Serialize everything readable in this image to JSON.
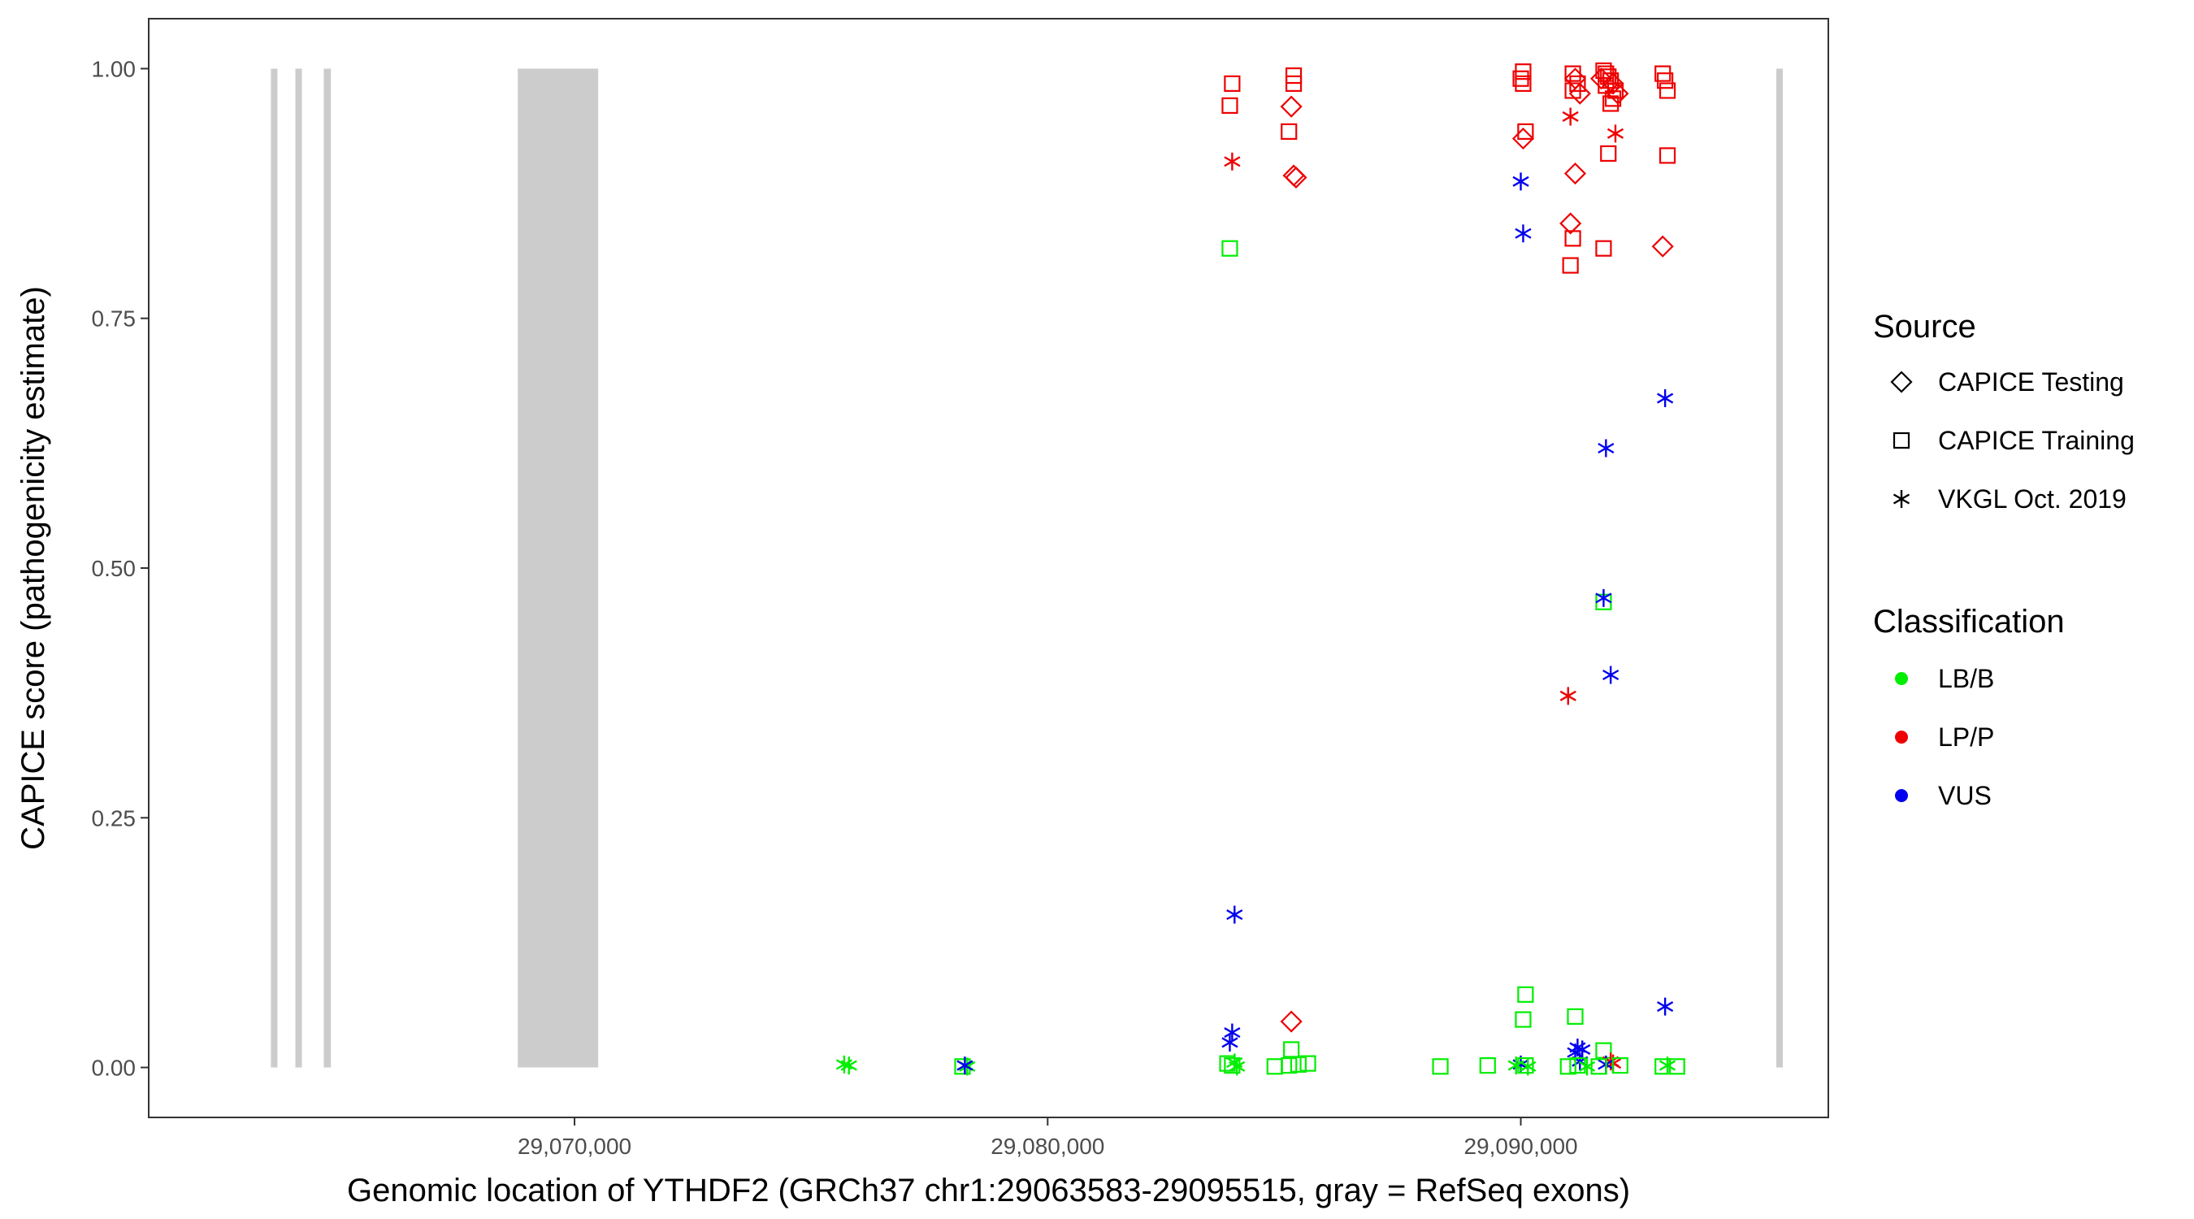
{
  "chart_data": {
    "type": "scatter",
    "xlabel": "Genomic location of YTHDF2 (GRCh37 chr1:29063583-29095515, gray = RefSeq exons)",
    "ylabel": "CAPICE score (pathogenicity estimate)",
    "xlim": [
      29061000,
      29096500
    ],
    "ylim": [
      -0.05,
      1.05
    ],
    "x_ticks": [
      29070000,
      29080000,
      29090000
    ],
    "x_tick_labels": [
      "29,070,000",
      "29,080,000",
      "29,090,000"
    ],
    "y_ticks": [
      0,
      0.25,
      0.5,
      0.75,
      1
    ],
    "y_tick_labels": [
      "0.00",
      "0.25",
      "0.50",
      "0.75",
      "1.00"
    ],
    "grid": false,
    "legend_position": "right",
    "exon_color": "#cccccc",
    "exons": [
      [
        29063583,
        29063700
      ],
      [
        29064100,
        29064220
      ],
      [
        29064700,
        29064850
      ],
      [
        29068800,
        29070500
      ],
      [
        29095400,
        29095515
      ]
    ],
    "source_legend": {
      "title": "Source",
      "items": [
        {
          "label": "CAPICE Testing",
          "shape": "diamond"
        },
        {
          "label": "CAPICE Training",
          "shape": "square"
        },
        {
          "label": "VKGL Oct. 2019",
          "shape": "asterisk"
        }
      ]
    },
    "class_legend": {
      "title": "Classification",
      "items": [
        {
          "label": "LB/B",
          "color": "#00ee00"
        },
        {
          "label": "LP/P",
          "color": "#ee0000"
        },
        {
          "label": "VUS",
          "color": "#0000ee"
        }
      ]
    },
    "points": [
      {
        "x": 29075700,
        "y": 0.003,
        "shape": "asterisk",
        "cls": "LB/B"
      },
      {
        "x": 29075800,
        "y": 0.002,
        "shape": "asterisk",
        "cls": "LB/B"
      },
      {
        "x": 29078200,
        "y": 0.001,
        "shape": "square",
        "cls": "LB/B"
      },
      {
        "x": 29078300,
        "y": 0.001,
        "shape": "asterisk",
        "cls": "LB/B"
      },
      {
        "x": 29078250,
        "y": 0.002,
        "shape": "asterisk",
        "cls": "VUS"
      },
      {
        "x": 29083900,
        "y": 0.985,
        "shape": "square",
        "cls": "LP/P"
      },
      {
        "x": 29083850,
        "y": 0.963,
        "shape": "square",
        "cls": "LP/P"
      },
      {
        "x": 29083900,
        "y": 0.907,
        "shape": "asterisk",
        "cls": "LP/P"
      },
      {
        "x": 29083850,
        "y": 0.82,
        "shape": "square",
        "cls": "LB/B"
      },
      {
        "x": 29083950,
        "y": 0.153,
        "shape": "asterisk",
        "cls": "VUS"
      },
      {
        "x": 29083900,
        "y": 0.035,
        "shape": "asterisk",
        "cls": "VUS"
      },
      {
        "x": 29083850,
        "y": 0.025,
        "shape": "asterisk",
        "cls": "VUS"
      },
      {
        "x": 29083800,
        "y": 0.004,
        "shape": "square",
        "cls": "LB/B"
      },
      {
        "x": 29083900,
        "y": 0.002,
        "shape": "square",
        "cls": "LB/B"
      },
      {
        "x": 29084000,
        "y": 0.001,
        "shape": "asterisk",
        "cls": "LB/B"
      },
      {
        "x": 29083950,
        "y": 0.005,
        "shape": "asterisk",
        "cls": "LB/B"
      },
      {
        "x": 29085200,
        "y": 0.993,
        "shape": "square",
        "cls": "LP/P"
      },
      {
        "x": 29085200,
        "y": 0.985,
        "shape": "square",
        "cls": "LP/P"
      },
      {
        "x": 29085150,
        "y": 0.962,
        "shape": "diamond",
        "cls": "LP/P"
      },
      {
        "x": 29085100,
        "y": 0.937,
        "shape": "square",
        "cls": "LP/P"
      },
      {
        "x": 29085200,
        "y": 0.893,
        "shape": "diamond",
        "cls": "LP/P"
      },
      {
        "x": 29085250,
        "y": 0.891,
        "shape": "diamond",
        "cls": "LP/P"
      },
      {
        "x": 29085150,
        "y": 0.046,
        "shape": "diamond",
        "cls": "LP/P"
      },
      {
        "x": 29085150,
        "y": 0.018,
        "shape": "square",
        "cls": "LB/B"
      },
      {
        "x": 29084800,
        "y": 0.001,
        "shape": "square",
        "cls": "LB/B"
      },
      {
        "x": 29085100,
        "y": 0.002,
        "shape": "square",
        "cls": "LB/B"
      },
      {
        "x": 29085300,
        "y": 0.003,
        "shape": "square",
        "cls": "LB/B"
      },
      {
        "x": 29085500,
        "y": 0.004,
        "shape": "square",
        "cls": "LB/B"
      },
      {
        "x": 29088300,
        "y": 0.001,
        "shape": "square",
        "cls": "LB/B"
      },
      {
        "x": 29089300,
        "y": 0.002,
        "shape": "square",
        "cls": "LB/B"
      },
      {
        "x": 29090050,
        "y": 0.997,
        "shape": "square",
        "cls": "LP/P"
      },
      {
        "x": 29090000,
        "y": 0.99,
        "shape": "square",
        "cls": "LP/P"
      },
      {
        "x": 29090050,
        "y": 0.985,
        "shape": "square",
        "cls": "LP/P"
      },
      {
        "x": 29090100,
        "y": 0.937,
        "shape": "square",
        "cls": "LP/P"
      },
      {
        "x": 29090050,
        "y": 0.93,
        "shape": "diamond",
        "cls": "LP/P"
      },
      {
        "x": 29090000,
        "y": 0.887,
        "shape": "asterisk",
        "cls": "VUS"
      },
      {
        "x": 29090050,
        "y": 0.835,
        "shape": "asterisk",
        "cls": "VUS"
      },
      {
        "x": 29090100,
        "y": 0.073,
        "shape": "square",
        "cls": "LB/B"
      },
      {
        "x": 29090050,
        "y": 0.048,
        "shape": "square",
        "cls": "LB/B"
      },
      {
        "x": 29090000,
        "y": 0.003,
        "shape": "asterisk",
        "cls": "VUS"
      },
      {
        "x": 29090100,
        "y": 0.002,
        "shape": "square",
        "cls": "LB/B"
      },
      {
        "x": 29090150,
        "y": 0.001,
        "shape": "asterisk",
        "cls": "LB/B"
      },
      {
        "x": 29089900,
        "y": 0.002,
        "shape": "asterisk",
        "cls": "LB/B"
      },
      {
        "x": 29091100,
        "y": 0.995,
        "shape": "square",
        "cls": "LP/P"
      },
      {
        "x": 29091150,
        "y": 0.99,
        "shape": "diamond",
        "cls": "LP/P"
      },
      {
        "x": 29091200,
        "y": 0.985,
        "shape": "square",
        "cls": "LP/P"
      },
      {
        "x": 29091100,
        "y": 0.978,
        "shape": "square",
        "cls": "LP/P"
      },
      {
        "x": 29091250,
        "y": 0.975,
        "shape": "diamond",
        "cls": "LP/P"
      },
      {
        "x": 29091050,
        "y": 0.952,
        "shape": "asterisk",
        "cls": "LP/P"
      },
      {
        "x": 29091150,
        "y": 0.895,
        "shape": "diamond",
        "cls": "LP/P"
      },
      {
        "x": 29091050,
        "y": 0.845,
        "shape": "diamond",
        "cls": "LP/P"
      },
      {
        "x": 29091100,
        "y": 0.83,
        "shape": "square",
        "cls": "LP/P"
      },
      {
        "x": 29091050,
        "y": 0.803,
        "shape": "square",
        "cls": "LP/P"
      },
      {
        "x": 29091000,
        "y": 0.372,
        "shape": "asterisk",
        "cls": "LP/P"
      },
      {
        "x": 29091150,
        "y": 0.051,
        "shape": "square",
        "cls": "LB/B"
      },
      {
        "x": 29091200,
        "y": 0.02,
        "shape": "asterisk",
        "cls": "VUS"
      },
      {
        "x": 29091150,
        "y": 0.015,
        "shape": "asterisk",
        "cls": "VUS"
      },
      {
        "x": 29091300,
        "y": 0.018,
        "shape": "asterisk",
        "cls": "VUS"
      },
      {
        "x": 29091250,
        "y": 0.006,
        "shape": "asterisk",
        "cls": "VUS"
      },
      {
        "x": 29091000,
        "y": 0.001,
        "shape": "square",
        "cls": "LB/B"
      },
      {
        "x": 29091200,
        "y": 0.002,
        "shape": "square",
        "cls": "LB/B"
      },
      {
        "x": 29091400,
        "y": 0.001,
        "shape": "asterisk",
        "cls": "LB/B"
      },
      {
        "x": 29091750,
        "y": 0.998,
        "shape": "square",
        "cls": "LP/P"
      },
      {
        "x": 29091800,
        "y": 0.995,
        "shape": "square",
        "cls": "LP/P"
      },
      {
        "x": 29091850,
        "y": 0.992,
        "shape": "square",
        "cls": "LP/P"
      },
      {
        "x": 29091700,
        "y": 0.99,
        "shape": "diamond",
        "cls": "LP/P"
      },
      {
        "x": 29091900,
        "y": 0.988,
        "shape": "square",
        "cls": "LP/P"
      },
      {
        "x": 29091950,
        "y": 0.985,
        "shape": "diamond",
        "cls": "LP/P"
      },
      {
        "x": 29091800,
        "y": 0.983,
        "shape": "square",
        "cls": "LP/P"
      },
      {
        "x": 29092000,
        "y": 0.978,
        "shape": "square",
        "cls": "LP/P"
      },
      {
        "x": 29092050,
        "y": 0.975,
        "shape": "diamond",
        "cls": "LP/P"
      },
      {
        "x": 29091950,
        "y": 0.97,
        "shape": "square",
        "cls": "LP/P"
      },
      {
        "x": 29091900,
        "y": 0.965,
        "shape": "square",
        "cls": "LP/P"
      },
      {
        "x": 29092000,
        "y": 0.935,
        "shape": "asterisk",
        "cls": "LP/P"
      },
      {
        "x": 29091850,
        "y": 0.915,
        "shape": "square",
        "cls": "LP/P"
      },
      {
        "x": 29091750,
        "y": 0.82,
        "shape": "square",
        "cls": "LP/P"
      },
      {
        "x": 29091800,
        "y": 0.62,
        "shape": "asterisk",
        "cls": "VUS"
      },
      {
        "x": 29091750,
        "y": 0.466,
        "shape": "square",
        "cls": "LB/B"
      },
      {
        "x": 29091750,
        "y": 0.47,
        "shape": "asterisk",
        "cls": "VUS"
      },
      {
        "x": 29091900,
        "y": 0.393,
        "shape": "asterisk",
        "cls": "VUS"
      },
      {
        "x": 29091750,
        "y": 0.017,
        "shape": "square",
        "cls": "LB/B"
      },
      {
        "x": 29091900,
        "y": 0.006,
        "shape": "asterisk",
        "cls": "LP/P"
      },
      {
        "x": 29091950,
        "y": 0.004,
        "shape": "asterisk",
        "cls": "LP/P"
      },
      {
        "x": 29091800,
        "y": 0.003,
        "shape": "asterisk",
        "cls": "VUS"
      },
      {
        "x": 29091650,
        "y": 0.001,
        "shape": "square",
        "cls": "LB/B"
      },
      {
        "x": 29092100,
        "y": 0.002,
        "shape": "square",
        "cls": "LB/B"
      },
      {
        "x": 29093000,
        "y": 0.995,
        "shape": "square",
        "cls": "LP/P"
      },
      {
        "x": 29093050,
        "y": 0.988,
        "shape": "square",
        "cls": "LP/P"
      },
      {
        "x": 29093100,
        "y": 0.978,
        "shape": "square",
        "cls": "LP/P"
      },
      {
        "x": 29093100,
        "y": 0.913,
        "shape": "square",
        "cls": "LP/P"
      },
      {
        "x": 29093000,
        "y": 0.822,
        "shape": "diamond",
        "cls": "LP/P"
      },
      {
        "x": 29093050,
        "y": 0.67,
        "shape": "asterisk",
        "cls": "VUS"
      },
      {
        "x": 29093050,
        "y": 0.061,
        "shape": "asterisk",
        "cls": "VUS"
      },
      {
        "x": 29093000,
        "y": 0.001,
        "shape": "square",
        "cls": "LB/B"
      },
      {
        "x": 29093100,
        "y": 0.002,
        "shape": "asterisk",
        "cls": "LB/B"
      },
      {
        "x": 29093300,
        "y": 0.001,
        "shape": "square",
        "cls": "LB/B"
      }
    ]
  }
}
